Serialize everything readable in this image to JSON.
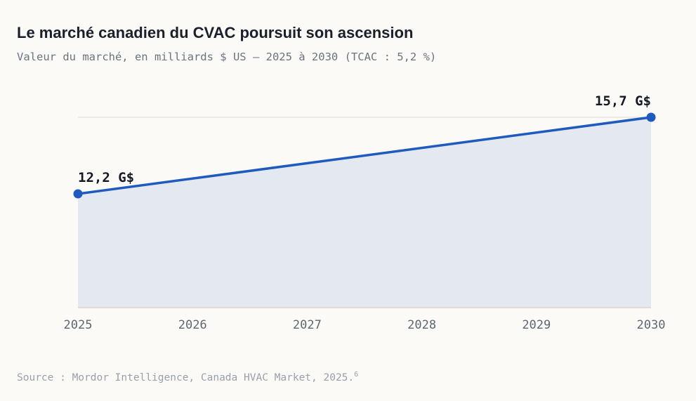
{
  "chart_data": {
    "type": "area",
    "title": "Le marché canadien du CVAC poursuit son ascension",
    "subtitle": "Valeur du marché, en milliards $ US — 2025 à 2030 (TCAC : 5,2 %)",
    "x": [
      2025,
      2030
    ],
    "y": [
      12.2,
      15.7
    ],
    "categories": [
      "2025",
      "2026",
      "2027",
      "2028",
      "2029",
      "2030"
    ],
    "data_labels": [
      "12,2 G$",
      "15,7 G$"
    ],
    "ylim": [
      7,
      15.7
    ],
    "grid": "horizontal",
    "colors": {
      "line": "#1f5bbf",
      "fill": "#e4e9f1",
      "grid": "#dcdcd8",
      "axis": "#e6cfc6"
    }
  },
  "source": {
    "text": "Source : Mordor Intelligence, Canada HVAC Market, 2025.",
    "note": "6"
  }
}
